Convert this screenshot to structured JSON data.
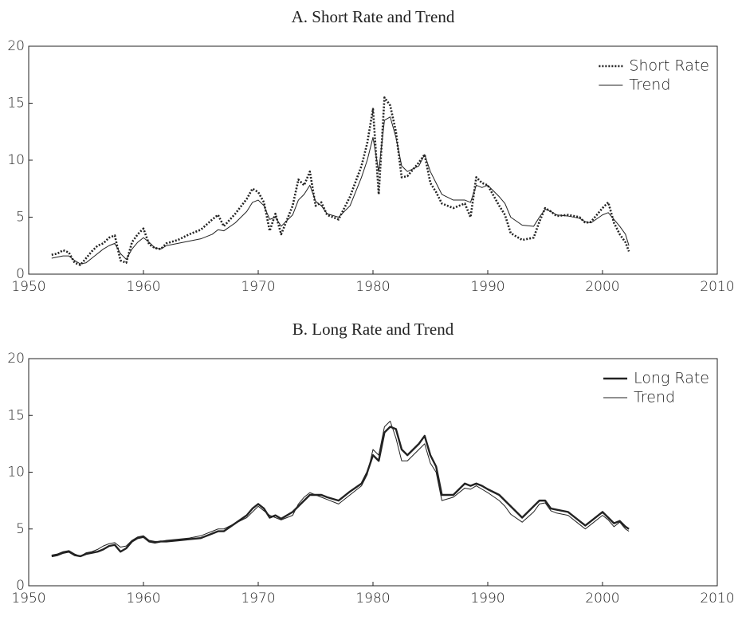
{
  "chart_data": [
    {
      "type": "line",
      "title": "A. Short Rate and Trend",
      "x": [
        1952,
        1952.5,
        1953,
        1953.5,
        1954,
        1954.5,
        1955,
        1955.5,
        1956,
        1956.5,
        1957,
        1957.5,
        1958,
        1958.5,
        1959,
        1959.5,
        1960,
        1960.5,
        1961,
        1961.5,
        1962,
        1963,
        1964,
        1965,
        1966,
        1966.5,
        1967,
        1968,
        1969,
        1969.5,
        1970,
        1970.5,
        1971,
        1971.5,
        1972,
        1973,
        1973.5,
        1974,
        1974.5,
        1975,
        1975.5,
        1976,
        1977,
        1978,
        1979,
        1979.5,
        1980,
        1980.5,
        1981,
        1981.5,
        1982,
        1982.5,
        1983,
        1984,
        1984.5,
        1985,
        1985.5,
        1986,
        1987,
        1988,
        1988.5,
        1989,
        1989.5,
        1990,
        1991,
        1991.5,
        1992,
        1993,
        1994,
        1994.5,
        1995,
        1995.5,
        1996,
        1997,
        1998,
        1998.5,
        1999,
        2000,
        2000.5,
        2001,
        2001.5,
        2002,
        2002.3
      ],
      "series": [
        {
          "name": "Short Rate",
          "color": "#222222",
          "style": "dotted",
          "width": 2.6,
          "values": [
            1.7,
            1.8,
            2.1,
            1.9,
            1.0,
            0.8,
            1.4,
            2.0,
            2.5,
            2.7,
            3.2,
            3.4,
            1.2,
            1.0,
            2.8,
            3.5,
            4.0,
            2.6,
            2.3,
            2.2,
            2.7,
            3.0,
            3.5,
            3.9,
            4.8,
            5.2,
            4.2,
            5.3,
            6.6,
            7.5,
            7.2,
            6.3,
            3.8,
            5.3,
            3.5,
            6.0,
            8.3,
            7.8,
            9.0,
            6.0,
            6.3,
            5.2,
            4.8,
            6.8,
            9.5,
            11.5,
            14.5,
            7.0,
            15.5,
            14.8,
            12.5,
            8.5,
            8.6,
            9.8,
            10.5,
            8.0,
            7.2,
            6.2,
            5.8,
            6.2,
            5.0,
            8.5,
            8.0,
            7.8,
            6.0,
            5.2,
            3.6,
            3.0,
            3.2,
            4.6,
            5.8,
            5.5,
            5.1,
            5.2,
            5.0,
            4.5,
            4.6,
            5.8,
            6.3,
            4.5,
            3.5,
            2.8,
            2.0
          ]
        },
        {
          "name": "Trend",
          "color": "#222222",
          "style": "solid",
          "width": 1,
          "values": [
            1.4,
            1.5,
            1.6,
            1.6,
            1.2,
            0.9,
            1.0,
            1.4,
            1.8,
            2.2,
            2.5,
            2.7,
            1.8,
            1.3,
            2.2,
            2.8,
            3.2,
            2.8,
            2.3,
            2.2,
            2.5,
            2.7,
            2.9,
            3.1,
            3.5,
            3.9,
            3.8,
            4.5,
            5.5,
            6.3,
            6.5,
            6.0,
            4.8,
            5.0,
            4.2,
            5.2,
            6.5,
            7.0,
            7.8,
            6.4,
            6.0,
            5.3,
            5.0,
            6.0,
            8.5,
            10.0,
            12.0,
            9.0,
            13.5,
            13.8,
            12.0,
            9.5,
            9.0,
            9.5,
            10.5,
            9.0,
            8.0,
            7.0,
            6.5,
            6.5,
            6.3,
            7.8,
            7.6,
            7.8,
            6.8,
            6.2,
            5.0,
            4.3,
            4.2,
            5.0,
            5.7,
            5.5,
            5.2,
            5.1,
            4.9,
            4.6,
            4.5,
            5.2,
            5.4,
            4.8,
            4.2,
            3.5,
            2.5
          ]
        }
      ],
      "xlim": [
        1950,
        2010
      ],
      "xticks": [
        1950,
        1960,
        1970,
        1980,
        1990,
        2000,
        2010
      ],
      "ylim": [
        0,
        20
      ],
      "yticks": [
        0,
        5,
        10,
        15,
        20
      ],
      "legend": "upper right"
    },
    {
      "type": "line",
      "title": "B. Long Rate and Trend",
      "x": [
        1952,
        1952.5,
        1953,
        1953.5,
        1954,
        1954.5,
        1955,
        1955.5,
        1956,
        1956.5,
        1957,
        1957.5,
        1958,
        1958.5,
        1959,
        1959.5,
        1960,
        1960.5,
        1961,
        1961.5,
        1962,
        1963,
        1964,
        1965,
        1966,
        1966.5,
        1967,
        1968,
        1969,
        1969.5,
        1970,
        1970.5,
        1971,
        1971.5,
        1972,
        1973,
        1973.5,
        1974,
        1974.5,
        1975,
        1975.5,
        1976,
        1977,
        1978,
        1979,
        1979.5,
        1980,
        1980.5,
        1981,
        1981.5,
        1982,
        1982.5,
        1983,
        1984,
        1984.5,
        1985,
        1985.5,
        1986,
        1987,
        1988,
        1988.5,
        1989,
        1989.5,
        1990,
        1991,
        1991.5,
        1992,
        1993,
        1994,
        1994.5,
        1995,
        1995.5,
        1996,
        1997,
        1998,
        1998.5,
        1999,
        2000,
        2000.5,
        2001,
        2001.5,
        2002,
        2002.3
      ],
      "series": [
        {
          "name": "Long Rate",
          "color": "#222222",
          "style": "solid",
          "width": 2.4,
          "values": [
            2.6,
            2.7,
            2.9,
            3.0,
            2.7,
            2.6,
            2.8,
            2.9,
            3.0,
            3.2,
            3.5,
            3.6,
            3.0,
            3.3,
            3.9,
            4.2,
            4.3,
            3.9,
            3.8,
            3.9,
            3.9,
            4.0,
            4.1,
            4.2,
            4.6,
            4.8,
            4.8,
            5.5,
            6.2,
            6.8,
            7.2,
            6.8,
            6.0,
            6.2,
            5.9,
            6.5,
            7.0,
            7.5,
            8.0,
            8.0,
            8.0,
            7.8,
            7.5,
            8.3,
            9.0,
            10.0,
            11.5,
            11.0,
            13.5,
            14.0,
            13.8,
            12.0,
            11.5,
            12.5,
            13.2,
            11.5,
            10.5,
            8.0,
            8.0,
            9.0,
            8.8,
            9.0,
            8.8,
            8.5,
            8.0,
            7.5,
            7.0,
            6.0,
            7.0,
            7.5,
            7.5,
            6.8,
            6.7,
            6.5,
            5.7,
            5.3,
            5.7,
            6.5,
            6.0,
            5.5,
            5.7,
            5.2,
            5.0
          ]
        },
        {
          "name": "Trend",
          "color": "#222222",
          "style": "solid",
          "width": 1,
          "values": [
            2.7,
            2.8,
            3.0,
            3.1,
            2.8,
            2.6,
            2.9,
            3.0,
            3.2,
            3.5,
            3.7,
            3.8,
            3.4,
            3.5,
            4.0,
            4.3,
            4.4,
            4.0,
            3.9,
            3.9,
            4.0,
            4.1,
            4.2,
            4.4,
            4.8,
            5.0,
            5.0,
            5.5,
            6.0,
            6.5,
            7.0,
            6.6,
            6.2,
            6.0,
            5.8,
            6.2,
            7.2,
            7.8,
            8.2,
            8.0,
            7.8,
            7.6,
            7.2,
            8.0,
            8.8,
            9.8,
            12.0,
            11.5,
            14.0,
            14.5,
            13.0,
            11.0,
            11.0,
            12.0,
            12.5,
            10.8,
            10.0,
            7.5,
            7.8,
            8.6,
            8.5,
            8.8,
            8.5,
            8.2,
            7.5,
            7.0,
            6.3,
            5.6,
            6.5,
            7.2,
            7.3,
            6.6,
            6.4,
            6.2,
            5.4,
            5.0,
            5.4,
            6.2,
            5.8,
            5.2,
            5.6,
            5.0,
            4.8
          ]
        }
      ],
      "xlim": [
        1950,
        2010
      ],
      "xticks": [
        1950,
        1960,
        1970,
        1980,
        1990,
        2000,
        2010
      ],
      "ylim": [
        0,
        20
      ],
      "yticks": [
        0,
        5,
        10,
        15,
        20
      ],
      "legend": "upper right"
    }
  ]
}
